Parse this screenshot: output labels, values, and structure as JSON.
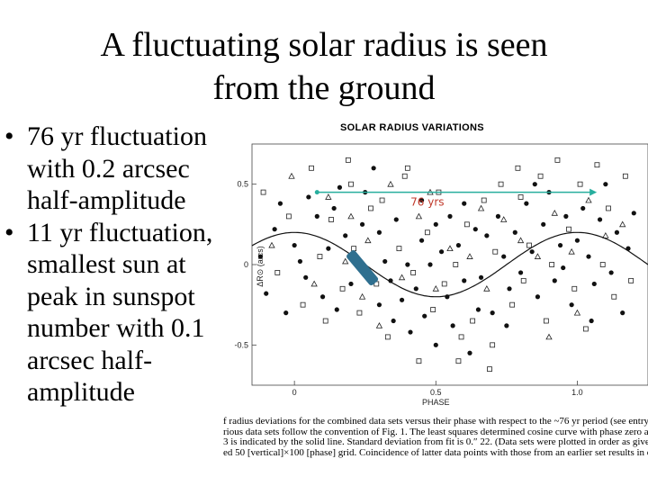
{
  "slide": {
    "title_line1": "A fluctuating solar radius is seen",
    "title_line2": "from the ground",
    "bullets": [
      {
        "lines": [
          "76 yr fluctuation",
          "with 0.2 arcsec",
          "half-amplitude"
        ]
      },
      {
        "lines": [
          "11 yr fluctuation,",
          "smallest sun at",
          "peak in sunspot",
          "number with 0.1",
          "arcsec half-",
          "amplitude"
        ]
      }
    ]
  },
  "figure": {
    "title": "SOLAR RADIUS VARIATIONS",
    "period_annotation": "76 yrs",
    "arrow_color": "#27ae9e",
    "marker_color": "#2f6f8f",
    "caption_lines": [
      "f radius deviations for the combined data sets versus their phase with respect to the ~76 yr period (see entry",
      "rious data sets follow the convention of Fig. 1. The least squares determined cosine curve with phase zero at",
      "3 is indicated by the solid line. Standard deviation from fit is 0.″ 22. (Data sets were plotted in order as give",
      "ed 50 [vertical]×100 [phase] grid. Coincidence of latter data points with those from an earlier set results in o"
    ]
  },
  "chart_data": {
    "type": "scatter",
    "title": "SOLAR RADIUS VARIATIONS",
    "xlabel": "PHASE",
    "ylabel": "ΔR⊙ (arcs)",
    "xlim": [
      -0.15,
      1.25
    ],
    "ylim": [
      -0.75,
      0.75
    ],
    "x_ticks": [
      "0",
      "0.5",
      "1.0"
    ],
    "y_ticks": [
      "0.5",
      "0",
      "-0.5"
    ],
    "grid": false,
    "fit_curve": {
      "type": "cosine",
      "amplitude": 0.2,
      "phase_zero_x": 0.0
    },
    "series": [
      {
        "marker": "filled-circle",
        "values": [
          [
            -0.12,
            0.05
          ],
          [
            -0.1,
            -0.18
          ],
          [
            -0.07,
            0.22
          ],
          [
            -0.05,
            0.38
          ],
          [
            -0.03,
            -0.3
          ],
          [
            0.0,
            0.12
          ],
          [
            0.02,
            0.02
          ],
          [
            0.04,
            -0.08
          ],
          [
            0.05,
            0.42
          ],
          [
            0.08,
            0.3
          ],
          [
            0.1,
            -0.2
          ],
          [
            0.12,
            0.1
          ],
          [
            0.14,
            0.35
          ],
          [
            0.16,
            0.48
          ],
          [
            0.18,
            0.18
          ],
          [
            0.2,
            -0.12
          ],
          [
            0.22,
            0.05
          ],
          [
            0.24,
            0.25
          ],
          [
            0.26,
            -0.05
          ],
          [
            0.28,
            0.6
          ],
          [
            0.3,
            -0.25
          ],
          [
            0.32,
            0.02
          ],
          [
            0.34,
            -0.1
          ],
          [
            0.36,
            0.28
          ],
          [
            0.38,
            -0.22
          ],
          [
            0.4,
            0.0
          ],
          [
            0.41,
            -0.42
          ],
          [
            0.43,
            -0.15
          ],
          [
            0.45,
            0.15
          ],
          [
            0.46,
            -0.32
          ],
          [
            0.48,
            0.0
          ],
          [
            0.5,
            -0.5
          ],
          [
            0.52,
            0.08
          ],
          [
            0.54,
            -0.2
          ],
          [
            0.56,
            -0.38
          ],
          [
            0.58,
            0.12
          ],
          [
            0.6,
            -0.1
          ],
          [
            0.62,
            -0.55
          ],
          [
            0.64,
            0.22
          ],
          [
            0.66,
            -0.08
          ],
          [
            0.68,
            0.18
          ],
          [
            0.7,
            -0.3
          ],
          [
            0.72,
            0.3
          ],
          [
            0.74,
            0.05
          ],
          [
            0.76,
            -0.15
          ],
          [
            0.78,
            0.2
          ],
          [
            0.8,
            -0.05
          ],
          [
            0.82,
            0.38
          ],
          [
            0.84,
            0.08
          ],
          [
            0.86,
            -0.2
          ],
          [
            0.88,
            0.25
          ],
          [
            0.9,
            0.45
          ],
          [
            0.92,
            -0.1
          ],
          [
            0.94,
            0.12
          ],
          [
            0.96,
            0.3
          ],
          [
            0.98,
            -0.25
          ],
          [
            1.0,
            0.15
          ],
          [
            1.02,
            0.35
          ],
          [
            1.04,
            0.05
          ],
          [
            1.06,
            -0.12
          ],
          [
            1.08,
            0.28
          ],
          [
            1.1,
            0.5
          ],
          [
            1.12,
            -0.05
          ],
          [
            1.14,
            0.2
          ],
          [
            1.16,
            -0.3
          ],
          [
            1.18,
            0.1
          ],
          [
            1.2,
            0.32
          ],
          [
            0.15,
            -0.28
          ],
          [
            0.25,
            0.45
          ],
          [
            0.35,
            -0.35
          ],
          [
            0.45,
            0.4
          ],
          [
            0.55,
            0.3
          ],
          [
            0.65,
            -0.28
          ],
          [
            0.75,
            -0.38
          ],
          [
            0.85,
            0.5
          ],
          [
            0.95,
            -0.02
          ],
          [
            1.05,
            -0.35
          ],
          [
            0.6,
            0.38
          ],
          [
            0.5,
            0.25
          ],
          [
            0.3,
            0.2
          ]
        ]
      },
      {
        "marker": "open-square",
        "values": [
          [
            -0.11,
            0.45
          ],
          [
            -0.06,
            -0.05
          ],
          [
            -0.02,
            0.3
          ],
          [
            0.03,
            -0.25
          ],
          [
            0.06,
            0.6
          ],
          [
            0.09,
            0.05
          ],
          [
            0.11,
            -0.35
          ],
          [
            0.13,
            0.28
          ],
          [
            0.17,
            -0.15
          ],
          [
            0.19,
            0.65
          ],
          [
            0.21,
            0.1
          ],
          [
            0.23,
            -0.3
          ],
          [
            0.27,
            0.35
          ],
          [
            0.29,
            -0.12
          ],
          [
            0.31,
            0.4
          ],
          [
            0.33,
            -0.45
          ],
          [
            0.37,
            0.1
          ],
          [
            0.39,
            0.55
          ],
          [
            0.42,
            -0.05
          ],
          [
            0.44,
            -0.6
          ],
          [
            0.47,
            0.2
          ],
          [
            0.49,
            -0.28
          ],
          [
            0.51,
            0.45
          ],
          [
            0.53,
            -0.12
          ],
          [
            0.57,
            0.0
          ],
          [
            0.59,
            -0.45
          ],
          [
            0.61,
            0.25
          ],
          [
            0.63,
            -0.35
          ],
          [
            0.67,
            0.4
          ],
          [
            0.69,
            -0.65
          ],
          [
            0.71,
            0.08
          ],
          [
            0.73,
            0.5
          ],
          [
            0.77,
            -0.25
          ],
          [
            0.79,
            0.6
          ],
          [
            0.81,
            -0.1
          ],
          [
            0.83,
            0.12
          ],
          [
            0.87,
            0.55
          ],
          [
            0.89,
            -0.35
          ],
          [
            0.91,
            0.0
          ],
          [
            0.93,
            0.65
          ],
          [
            0.97,
            0.22
          ],
          [
            0.99,
            -0.15
          ],
          [
            1.01,
            0.5
          ],
          [
            1.03,
            -0.4
          ],
          [
            1.07,
            0.62
          ],
          [
            1.09,
            0.0
          ],
          [
            1.11,
            0.35
          ],
          [
            1.13,
            -0.2
          ],
          [
            1.17,
            0.55
          ],
          [
            1.19,
            -0.1
          ],
          [
            0.58,
            -0.6
          ],
          [
            0.4,
            0.6
          ],
          [
            0.2,
            0.5
          ],
          [
            0.8,
            0.42
          ],
          [
            0.7,
            -0.5
          ]
        ]
      },
      {
        "marker": "open-triangle",
        "values": [
          [
            -0.08,
            0.12
          ],
          [
            -0.01,
            0.55
          ],
          [
            0.07,
            -0.12
          ],
          [
            0.12,
            0.42
          ],
          [
            0.18,
            0.02
          ],
          [
            0.26,
            0.15
          ],
          [
            0.34,
            0.5
          ],
          [
            0.38,
            -0.08
          ],
          [
            0.44,
            0.3
          ],
          [
            0.5,
            -0.15
          ],
          [
            0.55,
            0.1
          ],
          [
            0.62,
            0.05
          ],
          [
            0.68,
            -0.15
          ],
          [
            0.74,
            0.28
          ],
          [
            0.8,
            0.15
          ],
          [
            0.86,
            0.05
          ],
          [
            0.92,
            0.32
          ],
          [
            0.98,
            0.08
          ],
          [
            1.04,
            0.4
          ],
          [
            1.1,
            0.18
          ],
          [
            1.16,
            0.25
          ],
          [
            0.3,
            -0.38
          ],
          [
            0.48,
            0.45
          ],
          [
            0.66,
            0.35
          ],
          [
            0.2,
            0.3
          ],
          [
            0.24,
            -0.2
          ],
          [
            0.9,
            -0.45
          ],
          [
            1.0,
            -0.3
          ]
        ]
      }
    ]
  }
}
